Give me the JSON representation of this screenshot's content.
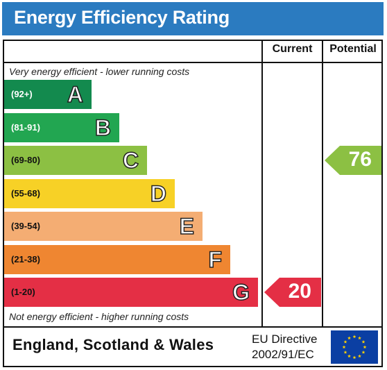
{
  "title": "Energy Efficiency Rating",
  "columns": {
    "current": "Current",
    "potential": "Potential"
  },
  "captions": {
    "top": "Very energy efficient - lower running costs",
    "bottom": "Not energy efficient - higher running costs"
  },
  "chart_data": {
    "type": "bar",
    "title": "Energy Efficiency Rating",
    "bands": [
      {
        "letter": "A",
        "range": "(92+)",
        "color": "#138a4e",
        "text_color": "#ffffff"
      },
      {
        "letter": "B",
        "range": "(81-91)",
        "color": "#22a651",
        "text_color": "#ffffff"
      },
      {
        "letter": "C",
        "range": "(69-80)",
        "color": "#8cc043",
        "text_color": "#111111"
      },
      {
        "letter": "D",
        "range": "(55-68)",
        "color": "#f7d126",
        "text_color": "#111111"
      },
      {
        "letter": "E",
        "range": "(39-54)",
        "color": "#f4ad73",
        "text_color": "#111111"
      },
      {
        "letter": "F",
        "range": "(21-38)",
        "color": "#ef8631",
        "text_color": "#111111"
      },
      {
        "letter": "G",
        "range": "(1-20)",
        "color": "#e42f45",
        "text_color": "#111111"
      }
    ],
    "ratings": {
      "current": {
        "value": "20",
        "band": "G",
        "color": "#e42f45"
      },
      "potential": {
        "value": "76",
        "band": "C",
        "color": "#8cc043"
      }
    }
  },
  "footer": {
    "region": "England, Scotland & Wales",
    "directive_line1": "EU Directive",
    "directive_line2": "2002/91/EC",
    "flag_color": "#0b3fa3",
    "star_color": "#ffd200"
  }
}
